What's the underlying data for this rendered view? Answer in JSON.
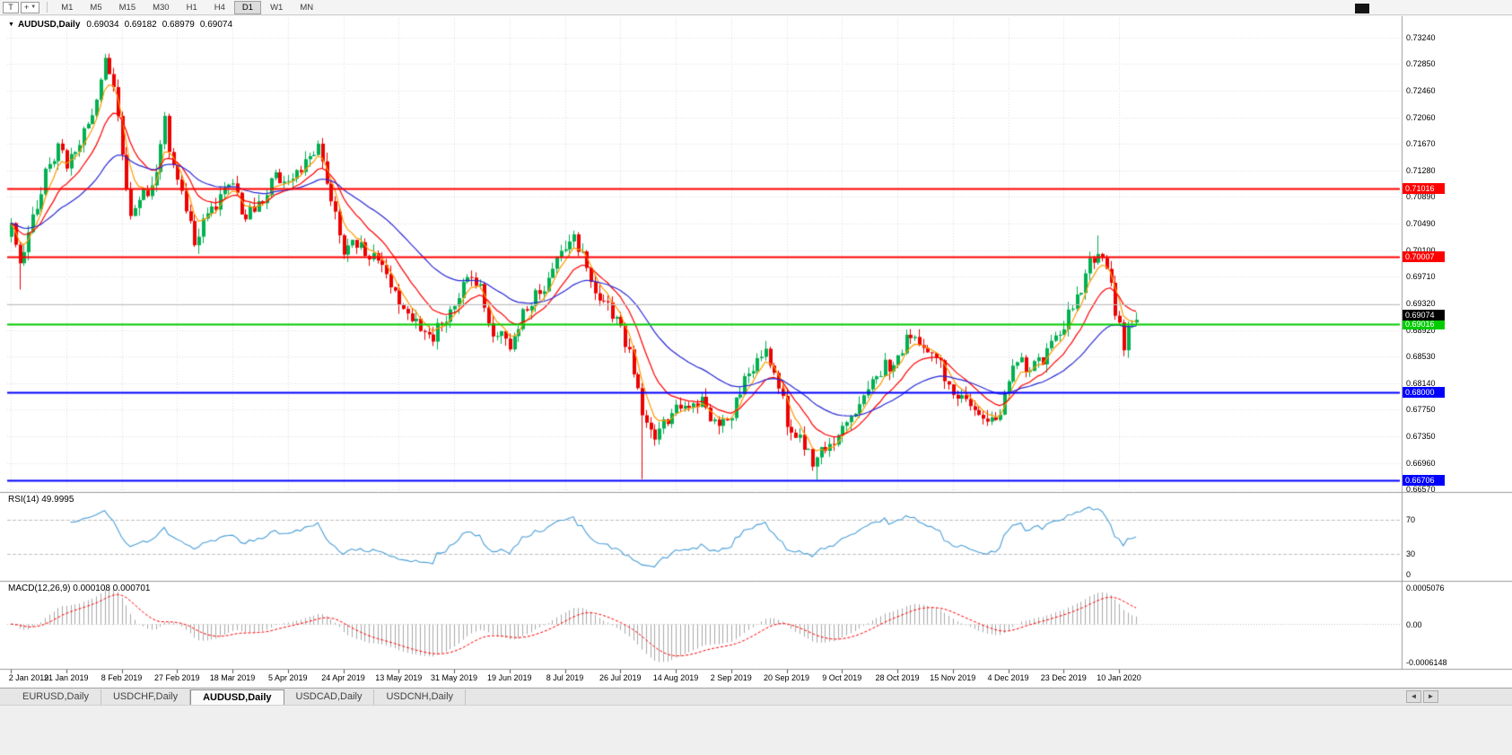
{
  "toolbar": {
    "tools": [
      {
        "id": "cursor-tool",
        "glyph": "T"
      },
      {
        "id": "crosshair-tool",
        "glyph": "+",
        "dropdown": "▼"
      }
    ],
    "timeframes": [
      "M1",
      "M5",
      "M15",
      "M30",
      "H1",
      "H4",
      "D1",
      "W1",
      "MN"
    ],
    "active_timeframe": "D1"
  },
  "chart": {
    "collapse_arrow": "▼",
    "symbol_title": "AUDUSD,Daily",
    "ohlc": {
      "open": "0.69034",
      "high": "0.69182",
      "low": "0.68979",
      "close": "0.69074"
    },
    "current_price_tag": {
      "label": "0.69074",
      "value": 0.69074,
      "bg": "#000000",
      "fg": "#ffffff"
    },
    "levels": [
      {
        "value": 0.71016,
        "label": "0.71016",
        "color": "#ff0000",
        "width": 2
      },
      {
        "value": 0.70007,
        "label": "0.70007",
        "color": "#ff0000",
        "width": 2
      },
      {
        "value": 0.693,
        "label": "",
        "color": "#c0c0c0",
        "width": 1
      },
      {
        "value": 0.69016,
        "label": "0.69016",
        "color": "#00cc00",
        "width": 2
      },
      {
        "value": 0.68,
        "label": "0.68000",
        "color": "#0000ff",
        "width": 2
      },
      {
        "value": 0.66706,
        "label": "0.66706",
        "color": "#0000ff",
        "width": 2
      }
    ]
  },
  "rsi": {
    "header": "RSI(14) 49.9995",
    "period": 14,
    "value": 49.9995,
    "levels": [
      70,
      30
    ],
    "axis_labels": [
      "70",
      "30",
      "0"
    ],
    "line_color": "#4a9fd8"
  },
  "macd": {
    "header": "MACD(12,26,9) 0.000108 0.000701",
    "params": [
      12,
      26,
      9
    ],
    "macd_value": 0.000108,
    "signal_value": 0.000701,
    "axis_top_label": "0.0005076",
    "axis_zero_label": "0.00",
    "axis_bottom_label": "-0.0006148",
    "histogram_color": "#a9a9a9",
    "signal_color": "#ff0000"
  },
  "tab_bar": {
    "tabs": [
      "EURUSD,Daily",
      "USDCHF,Daily",
      "AUDUSD,Daily",
      "USDCAD,Daily",
      "USDCNH,Daily"
    ],
    "active_index": 2,
    "scroll_left": "◄",
    "scroll_right": "►"
  },
  "chart_data": {
    "type": "candlestick",
    "symbol": "AUDUSD",
    "timeframe": "Daily",
    "ohlc_last": {
      "open": 0.69034,
      "high": 0.69182,
      "low": 0.68979,
      "close": 0.69074
    },
    "y_axis_labels": [
      "0.73240",
      "0.72850",
      "0.72460",
      "0.72060",
      "0.71670",
      "0.71280",
      "0.70890",
      "0.70490",
      "0.70100",
      "0.69710",
      "0.69320",
      "0.68920",
      "0.68530",
      "0.68140",
      "0.67750",
      "0.67350",
      "0.66960",
      "0.66570"
    ],
    "y_range": [
      0.6657,
      0.7324
    ],
    "x_axis": {
      "labels": [
        "2 Jan 2019",
        "21 Jan 2019",
        "8 Feb 2019",
        "27 Feb 2019",
        "18 Mar 2019",
        "5 Apr 2019",
        "24 Apr 2019",
        "13 May 2019",
        "31 May 2019",
        "19 Jun 2019",
        "8 Jul 2019",
        "26 Jul 2019",
        "14 Aug 2019",
        "2 Sep 2019",
        "20 Sep 2019",
        "9 Oct 2019",
        "28 Oct 2019",
        "15 Nov 2019",
        "4 Dec 2019",
        "23 Dec 2019",
        "10 Jan 2020"
      ],
      "day_indices": [
        0,
        13,
        26,
        39,
        52,
        65,
        78,
        91,
        104,
        117,
        130,
        143,
        156,
        169,
        182,
        195,
        208,
        221,
        234,
        247,
        260
      ]
    },
    "num_candles": 265,
    "up_color": "#00b050",
    "down_color": "#ec0000",
    "price_path_anchors": [
      [
        0,
        0.704
      ],
      [
        2,
        0.698
      ],
      [
        5,
        0.706
      ],
      [
        8,
        0.712
      ],
      [
        11,
        0.716
      ],
      [
        13,
        0.714
      ],
      [
        16,
        0.716
      ],
      [
        19,
        0.722
      ],
      [
        22,
        0.729
      ],
      [
        24,
        0.725
      ],
      [
        26,
        0.715
      ],
      [
        28,
        0.706
      ],
      [
        31,
        0.709
      ],
      [
        34,
        0.712
      ],
      [
        36,
        0.72
      ],
      [
        38,
        0.713
      ],
      [
        41,
        0.707
      ],
      [
        43,
        0.702
      ],
      [
        46,
        0.706
      ],
      [
        49,
        0.709
      ],
      [
        52,
        0.71
      ],
      [
        55,
        0.706
      ],
      [
        58,
        0.708
      ],
      [
        62,
        0.712
      ],
      [
        65,
        0.711
      ],
      [
        69,
        0.714
      ],
      [
        72,
        0.717
      ],
      [
        75,
        0.708
      ],
      [
        78,
        0.701
      ],
      [
        82,
        0.702
      ],
      [
        86,
        0.699
      ],
      [
        91,
        0.694
      ],
      [
        95,
        0.69
      ],
      [
        98,
        0.6875
      ],
      [
        101,
        0.69
      ],
      [
        104,
        0.693
      ],
      [
        107,
        0.697
      ],
      [
        110,
        0.695
      ],
      [
        113,
        0.689
      ],
      [
        117,
        0.687
      ],
      [
        121,
        0.693
      ],
      [
        125,
        0.696
      ],
      [
        128,
        0.7
      ],
      [
        132,
        0.7035
      ],
      [
        135,
        0.6985
      ],
      [
        139,
        0.693
      ],
      [
        143,
        0.69
      ],
      [
        146,
        0.683
      ],
      [
        148,
        0.677
      ],
      [
        151,
        0.674
      ],
      [
        154,
        0.676
      ],
      [
        156,
        0.678
      ],
      [
        159,
        0.677
      ],
      [
        162,
        0.679
      ],
      [
        165,
        0.675
      ],
      [
        169,
        0.677
      ],
      [
        173,
        0.683
      ],
      [
        177,
        0.687
      ],
      [
        180,
        0.681
      ],
      [
        182,
        0.676
      ],
      [
        186,
        0.672
      ],
      [
        188,
        0.67
      ],
      [
        191,
        0.672
      ],
      [
        195,
        0.674
      ],
      [
        199,
        0.678
      ],
      [
        203,
        0.683
      ],
      [
        208,
        0.685
      ],
      [
        211,
        0.689
      ],
      [
        214,
        0.686
      ],
      [
        218,
        0.684
      ],
      [
        221,
        0.68
      ],
      [
        225,
        0.679
      ],
      [
        228,
        0.677
      ],
      [
        232,
        0.676
      ],
      [
        234,
        0.682
      ],
      [
        236,
        0.6855
      ],
      [
        239,
        0.683
      ],
      [
        242,
        0.685
      ],
      [
        245,
        0.688
      ],
      [
        247,
        0.69
      ],
      [
        250,
        0.694
      ],
      [
        253,
        0.699
      ],
      [
        255,
        0.701
      ],
      [
        257,
        0.6985
      ],
      [
        259,
        0.692
      ],
      [
        261,
        0.687
      ],
      [
        263,
        0.6905
      ],
      [
        264,
        0.6907
      ]
    ],
    "wick_spikes": [
      {
        "day": 2,
        "low": 0.6952
      },
      {
        "day": 22,
        "high": 0.73
      },
      {
        "day": 148,
        "low": 0.6672
      },
      {
        "day": 189,
        "low": 0.6671
      },
      {
        "day": 255,
        "high": 0.7032
      }
    ],
    "moving_averages": [
      {
        "type": "ema",
        "period": 5,
        "color": "#ff9900"
      },
      {
        "type": "ema",
        "period": 13,
        "color": "#ff0000"
      },
      {
        "type": "ema",
        "period": 34,
        "color": "#2929d6"
      }
    ],
    "horizontal_lines": [
      0.71016,
      0.70007,
      0.693,
      0.69016,
      0.68,
      0.66706
    ],
    "indicators": {
      "rsi_period": 14,
      "rsi_value": 49.9995,
      "macd_params": [
        12,
        26,
        9
      ],
      "macd_value": 0.000108,
      "macd_signal": 0.000701
    }
  }
}
